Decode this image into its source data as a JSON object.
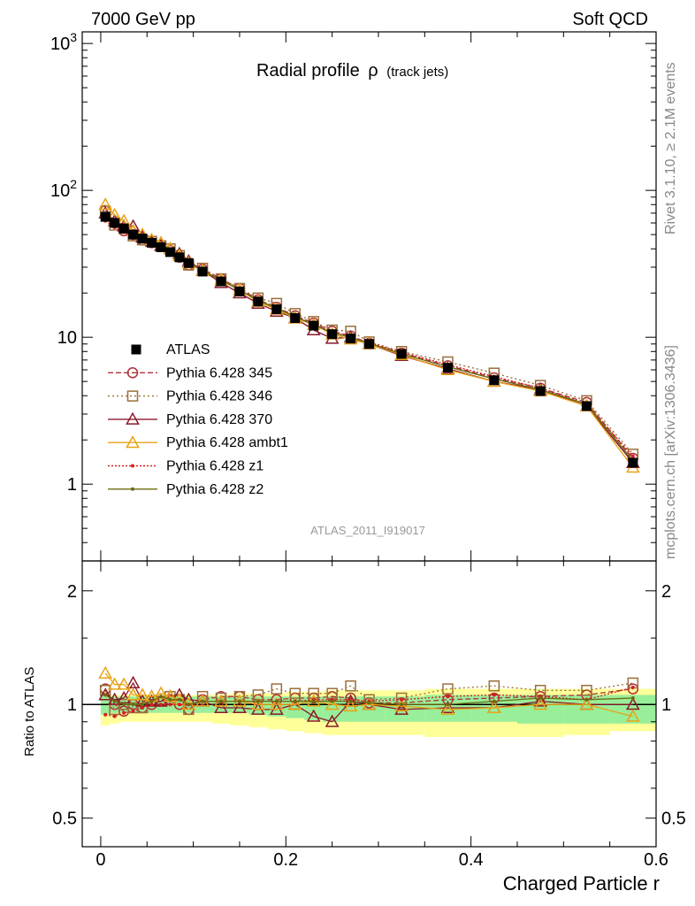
{
  "header": {
    "left": "7000 GeV pp",
    "right": "Soft QCD"
  },
  "side_labels": {
    "rivet": "Rivet 3.1.10, ≥ 2.1M events",
    "mcplots": "mcplots.cern.ch [arXiv:1306.3436]"
  },
  "chart_data": [
    {
      "type": "line",
      "title_main": "Radial profile",
      "title_rho": "ρ",
      "title_sub": "(track jets)",
      "watermark": "ATLAS_2011_I919017",
      "xlabel": "Charged Particle r",
      "ylabel": "",
      "xlim": [
        -0.02,
        0.6
      ],
      "ylim": [
        0.3,
        1200
      ],
      "yscale": "log",
      "grid": false,
      "legend_position": "left-middle",
      "y_ticks": [
        {
          "value": 1000,
          "base": "10",
          "exp": "3"
        },
        {
          "value": 100,
          "base": "10",
          "exp": "2"
        },
        {
          "value": 10,
          "label": "10"
        },
        {
          "value": 1,
          "label": "1"
        }
      ],
      "x": [
        0.005,
        0.015,
        0.025,
        0.035,
        0.045,
        0.055,
        0.065,
        0.075,
        0.085,
        0.095,
        0.11,
        0.13,
        0.15,
        0.17,
        0.19,
        0.21,
        0.23,
        0.25,
        0.27,
        0.29,
        0.325,
        0.375,
        0.425,
        0.475,
        0.525,
        0.575
      ],
      "series": [
        {
          "name": "ATLAS",
          "color": "#000000",
          "marker": "filled-square",
          "dash": "none",
          "values": [
            66,
            60,
            55,
            50,
            47,
            44,
            41,
            38,
            35,
            32,
            28,
            24,
            20.5,
            17.5,
            15.5,
            13.5,
            12.0,
            10.5,
            9.8,
            9.0,
            7.7,
            6.2,
            5.1,
            4.3,
            3.4,
            1.4
          ]
        },
        {
          "name": "Pythia 6.428 345",
          "color": "#b0303a",
          "marker": "open-circle",
          "dash": "6,3",
          "values": [
            73,
            60,
            53,
            50,
            46,
            44,
            42,
            39,
            35,
            31,
            29,
            25,
            21.5,
            18,
            16,
            14,
            12.5,
            11,
            10.2,
            9.1,
            7.8,
            6.4,
            5.3,
            4.5,
            3.6,
            1.5
          ]
        },
        {
          "name": "Pythia 6.428 346",
          "color": "#9a6f3a",
          "marker": "open-square",
          "dash": "2,3",
          "values": [
            72,
            58,
            55,
            49,
            46,
            45,
            42,
            40,
            36,
            31,
            29.5,
            25,
            21.5,
            18.5,
            17,
            14.5,
            12.8,
            11.2,
            11.0,
            9.3,
            8.0,
            6.8,
            5.7,
            4.7,
            3.7,
            1.6
          ]
        },
        {
          "name": "Pythia 6.428 370",
          "color": "#8b1a2b",
          "marker": "open-triangle",
          "dash": "none",
          "values": [
            70,
            62,
            57,
            57,
            48,
            45,
            42,
            40,
            37,
            33,
            28.5,
            23.5,
            20,
            17,
            15,
            13.5,
            11.2,
            9.8,
            10.0,
            9.0,
            7.5,
            6.1,
            5.0,
            4.4,
            3.4,
            1.4
          ]
        },
        {
          "name": "Pythia 6.428 ambt1",
          "color": "#e8a317",
          "marker": "open-triangle",
          "dash": "none",
          "values": [
            80,
            68,
            62,
            53,
            50,
            46,
            44,
            40,
            36,
            32,
            28.5,
            24.5,
            21,
            17.5,
            15.5,
            13.5,
            12.2,
            10.5,
            9.7,
            9.0,
            7.6,
            6.0,
            5.0,
            4.3,
            3.4,
            1.3
          ]
        },
        {
          "name": "Pythia 6.428 z1",
          "color": "#d42020",
          "marker": "dot",
          "dash": "2,2",
          "values": [
            62,
            56,
            52,
            48,
            46,
            44,
            41,
            38,
            35,
            32,
            28.5,
            24.5,
            21,
            17.8,
            15.8,
            13.8,
            12.3,
            10.8,
            10.1,
            9.2,
            7.9,
            6.5,
            5.4,
            4.5,
            3.5,
            1.55
          ]
        },
        {
          "name": "Pythia 6.428 z2",
          "color": "#6b6b10",
          "marker": "dot",
          "dash": "none",
          "values": [
            70,
            61,
            55,
            50,
            47,
            45,
            43,
            39,
            36,
            32,
            28.5,
            24.5,
            21,
            17.8,
            15.8,
            13.8,
            12.2,
            10.7,
            10.0,
            9.1,
            7.7,
            6.3,
            5.2,
            4.4,
            3.5,
            1.45
          ]
        }
      ],
      "legend_entries": [
        "ATLAS",
        "Pythia 6.428 345",
        "Pythia 6.428 346",
        "Pythia 6.428 370",
        "Pythia 6.428 ambt1",
        "Pythia 6.428 z1",
        "Pythia 6.428 z2"
      ]
    },
    {
      "type": "line",
      "title": "",
      "xlabel": "Charged Particle r",
      "ylabel": "Ratio to ATLAS",
      "xlim": [
        -0.02,
        0.6
      ],
      "ylim": [
        0.42,
        2.4
      ],
      "yscale": "log",
      "y_ticks": [
        2,
        1,
        0.5
      ],
      "x_ticks": [
        0,
        0.2,
        0.4,
        0.6
      ],
      "uncertainty_bands": {
        "outer_color": "#ffff99",
        "inner_color": "#99ee99",
        "inner_hi": [
          1.07,
          1.05,
          1.05,
          1.05,
          1.05,
          1.05,
          1.05,
          1.05,
          1.05,
          1.05,
          1.05,
          1.05,
          1.05,
          1.05,
          1.05,
          1.05,
          1.05,
          1.05,
          1.05,
          1.05,
          1.05,
          1.06,
          1.06,
          1.06,
          1.06,
          1.06
        ],
        "inner_lo": [
          0.94,
          0.95,
          0.95,
          0.95,
          0.95,
          0.95,
          0.95,
          0.95,
          0.95,
          0.95,
          0.95,
          0.95,
          0.95,
          0.94,
          0.93,
          0.92,
          0.91,
          0.9,
          0.9,
          0.9,
          0.9,
          0.9,
          0.9,
          0.89,
          0.89,
          0.89
        ],
        "outer_hi": [
          1.08,
          1.06,
          1.06,
          1.06,
          1.06,
          1.06,
          1.06,
          1.06,
          1.06,
          1.06,
          1.06,
          1.06,
          1.07,
          1.07,
          1.07,
          1.08,
          1.08,
          1.09,
          1.09,
          1.09,
          1.09,
          1.1,
          1.1,
          1.1,
          1.1,
          1.1
        ],
        "outer_lo": [
          0.88,
          0.89,
          0.9,
          0.9,
          0.9,
          0.9,
          0.9,
          0.9,
          0.9,
          0.9,
          0.9,
          0.89,
          0.88,
          0.87,
          0.86,
          0.85,
          0.84,
          0.83,
          0.83,
          0.83,
          0.83,
          0.82,
          0.82,
          0.82,
          0.83,
          0.85
        ]
      },
      "series": [
        {
          "name": "Pythia 6.428 345",
          "values": [
            1.1,
            1.0,
            0.96,
            1.0,
            0.98,
            1.0,
            1.02,
            1.03,
            1.0,
            0.97,
            1.03,
            1.05,
            1.05,
            1.03,
            1.03,
            1.04,
            1.04,
            1.05,
            1.04,
            1.01,
            1.01,
            1.03,
            1.04,
            1.05,
            1.06,
            1.1
          ]
        },
        {
          "name": "Pythia 6.428 346",
          "values": [
            1.09,
            0.97,
            1.0,
            0.98,
            0.98,
            1.02,
            1.02,
            1.05,
            1.03,
            0.97,
            1.05,
            1.04,
            1.05,
            1.06,
            1.1,
            1.07,
            1.07,
            1.07,
            1.12,
            1.03,
            1.04,
            1.1,
            1.12,
            1.09,
            1.09,
            1.14
          ]
        },
        {
          "name": "Pythia 6.428 370",
          "values": [
            1.06,
            1.03,
            1.04,
            1.14,
            1.02,
            1.02,
            1.02,
            1.05,
            1.06,
            1.03,
            1.02,
            0.98,
            0.98,
            0.97,
            0.97,
            1.0,
            0.93,
            0.9,
            1.02,
            1.0,
            0.97,
            0.98,
            0.98,
            1.02,
            1.0,
            1.0
          ]
        },
        {
          "name": "Pythia 6.428 ambt1",
          "values": [
            1.21,
            1.13,
            1.13,
            1.06,
            1.06,
            1.05,
            1.07,
            1.05,
            1.03,
            1.0,
            1.02,
            1.02,
            1.02,
            1.0,
            1.0,
            1.0,
            1.02,
            1.0,
            0.99,
            1.0,
            0.99,
            0.97,
            0.98,
            1.0,
            1.0,
            0.93
          ]
        },
        {
          "name": "Pythia 6.428 z1",
          "values": [
            0.94,
            0.93,
            0.95,
            0.96,
            0.98,
            1.0,
            1.0,
            1.0,
            1.0,
            1.0,
            1.02,
            1.02,
            1.02,
            1.02,
            1.02,
            1.02,
            1.03,
            1.03,
            1.03,
            1.02,
            1.03,
            1.05,
            1.06,
            1.05,
            1.03,
            1.11
          ]
        },
        {
          "name": "Pythia 6.428 z2",
          "values": [
            1.06,
            1.02,
            1.0,
            1.0,
            1.0,
            1.02,
            1.05,
            1.03,
            1.03,
            1.0,
            1.02,
            1.02,
            1.02,
            1.02,
            1.02,
            1.02,
            1.02,
            1.02,
            1.02,
            1.01,
            1.0,
            1.0,
            1.02,
            1.04,
            1.03,
            1.04
          ]
        }
      ]
    }
  ]
}
